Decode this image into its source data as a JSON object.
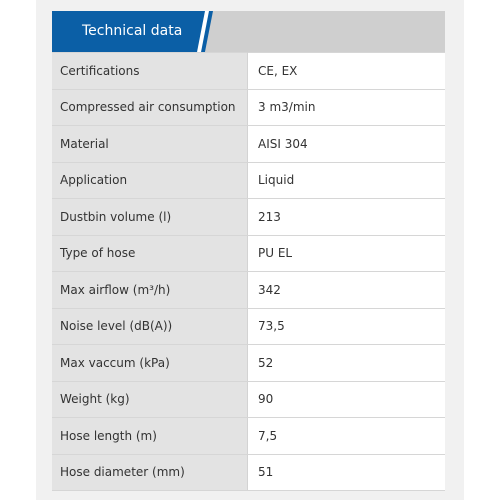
{
  "tabs": {
    "active_label": "Technical data"
  },
  "rows": [
    {
      "label": "Certifications",
      "value": "CE, EX"
    },
    {
      "label": "Compressed air consumption",
      "value": "3 m3/min"
    },
    {
      "label": "Material",
      "value": "AISI 304"
    },
    {
      "label": "Application",
      "value": "Liquid"
    },
    {
      "label": "Dustbin volume (l)",
      "value": "213"
    },
    {
      "label": "Type of hose",
      "value": "PU EL"
    },
    {
      "label": "Max airflow (m³/h)",
      "value": "342"
    },
    {
      "label": "Noise level (dB(A))",
      "value": "73,5"
    },
    {
      "label": "Max vaccum (kPa)",
      "value": "52"
    },
    {
      "label": "Weight (kg)",
      "value": "90"
    },
    {
      "label": "Hose length (m)",
      "value": "7,5"
    },
    {
      "label": "Hose diameter (mm)",
      "value": "51"
    }
  ],
  "colors": {
    "tab_active": "#0b5fa6",
    "tab_inactive": "#cfcfcf",
    "label_cell": "#e3e3e3",
    "value_cell": "#ffffff"
  }
}
